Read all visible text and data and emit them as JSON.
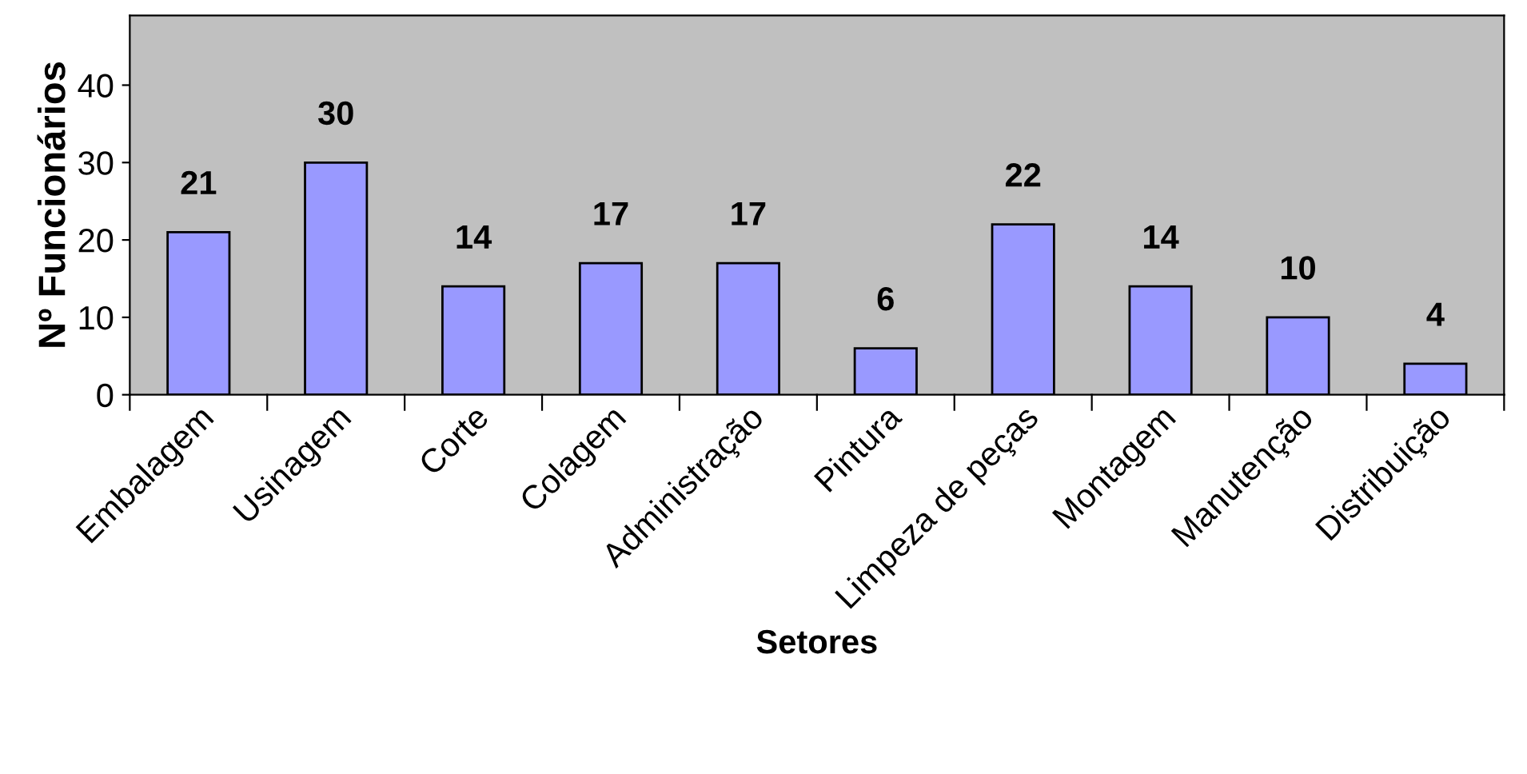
{
  "chart_data": {
    "type": "bar",
    "xlabel": "Setores",
    "ylabel": "Nº Funcionários",
    "categories": [
      "Embalagem",
      "Usinagem",
      "Corte",
      "Colagem",
      "Administração",
      "Pintura",
      "Limpeza de peças",
      "Montagem",
      "Manutenção",
      "Distribuição"
    ],
    "values": [
      21,
      30,
      14,
      17,
      17,
      6,
      22,
      14,
      10,
      4
    ],
    "color": "#9999ff",
    "ylim": [
      0,
      49
    ],
    "yticks": [
      0,
      10,
      20,
      30,
      40
    ],
    "grid": false,
    "data_labels": true
  }
}
